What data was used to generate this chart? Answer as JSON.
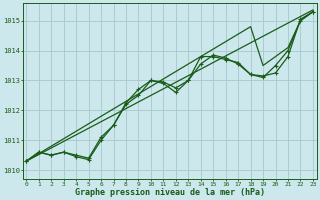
{
  "xlabel": "Graphe pression niveau de la mer (hPa)",
  "background_color": "#cce8ec",
  "grid_color": "#aaccd0",
  "line_color": "#1a5c1a",
  "x_ticks": [
    0,
    1,
    2,
    3,
    4,
    5,
    6,
    7,
    8,
    9,
    10,
    11,
    12,
    13,
    14,
    15,
    16,
    17,
    18,
    19,
    20,
    21,
    22,
    23
  ],
  "y_ticks": [
    1010,
    1011,
    1012,
    1013,
    1014,
    1015
  ],
  "ylim": [
    1009.7,
    1015.6
  ],
  "xlim": [
    -0.3,
    23.3
  ],
  "series_straight1": [
    1010.3,
    1010.55,
    1010.8,
    1011.05,
    1011.3,
    1011.55,
    1011.8,
    1012.05,
    1012.3,
    1012.55,
    1012.8,
    1013.05,
    1013.3,
    1013.55,
    1013.8,
    1014.05,
    1014.3,
    1014.55,
    1014.8,
    1013.5,
    1013.8,
    1014.1,
    1015.0,
    1015.3
  ],
  "series_straight2": [
    1010.3,
    1010.52,
    1010.74,
    1010.96,
    1011.18,
    1011.4,
    1011.62,
    1011.84,
    1012.06,
    1012.28,
    1012.5,
    1012.72,
    1012.94,
    1013.16,
    1013.38,
    1013.6,
    1013.82,
    1014.04,
    1014.26,
    1014.48,
    1014.7,
    1014.92,
    1015.14,
    1015.36
  ],
  "series_wiggly1": [
    1010.3,
    1010.6,
    1010.5,
    1010.6,
    1010.5,
    1010.4,
    1011.1,
    1011.5,
    1012.2,
    1012.5,
    1013.0,
    1012.9,
    1012.6,
    1013.0,
    1013.8,
    1013.8,
    1013.7,
    1013.6,
    1013.2,
    1013.1,
    1013.5,
    1014.0,
    1015.0,
    1015.3
  ],
  "series_wiggly2": [
    1010.3,
    1010.6,
    1010.5,
    1010.6,
    1010.45,
    1010.35,
    1011.0,
    1011.5,
    1012.25,
    1012.7,
    1013.0,
    1012.95,
    1012.75,
    1013.0,
    1013.55,
    1013.85,
    1013.75,
    1013.55,
    1013.2,
    1013.15,
    1013.25,
    1013.8,
    1015.05,
    1015.3
  ]
}
